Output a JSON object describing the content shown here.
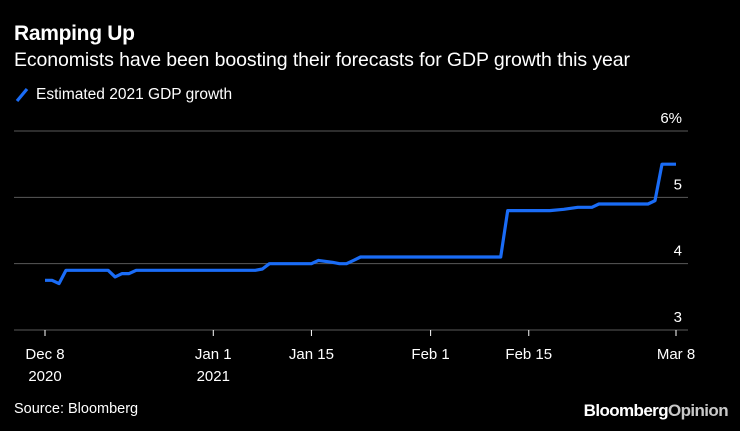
{
  "header": {
    "title": "Ramping Up",
    "subtitle": "Economists have been boosting their forecasts for GDP growth this year"
  },
  "footer": {
    "source": "Source: Bloomberg",
    "brand_part1": "Bloomberg",
    "brand_part2": "Opinion"
  },
  "colors": {
    "background": "#000000",
    "line": "#1a6cf6",
    "grid": "#5a5a5a",
    "text": "#ffffff",
    "brand_accent": "#c8c8c8"
  },
  "chart_data": {
    "type": "line",
    "title": "Ramping Up",
    "subtitle": "Economists have been boosting their forecasts for GDP growth this year",
    "xlabel": "",
    "ylabel": "",
    "ylim": [
      3,
      6
    ],
    "xlim_days": [
      -1,
      90
    ],
    "yticks": [
      {
        "value": 3,
        "label": "3"
      },
      {
        "value": 4,
        "label": "4"
      },
      {
        "value": 5,
        "label": "5"
      },
      {
        "value": 6,
        "label": "6%"
      }
    ],
    "xticks": [
      {
        "day": 0,
        "label": "Dec 8",
        "sublabel": "2020"
      },
      {
        "day": 24,
        "label": "Jan 1",
        "sublabel": "2021"
      },
      {
        "day": 38,
        "label": "Jan 15",
        "sublabel": ""
      },
      {
        "day": 55,
        "label": "Feb 1",
        "sublabel": ""
      },
      {
        "day": 69,
        "label": "Feb 15",
        "sublabel": ""
      },
      {
        "day": 90,
        "label": "Mar 8",
        "sublabel": ""
      }
    ],
    "legend": {
      "position": "top-left",
      "entries": [
        "Estimated 2021 GDP growth"
      ]
    },
    "series": [
      {
        "name": "Estimated 2021 GDP growth",
        "x": [
          0,
          1,
          2,
          3,
          4,
          8,
          9,
          10,
          11,
          12,
          13,
          14,
          18,
          22,
          25,
          30,
          31,
          32,
          33,
          35,
          37,
          38,
          39,
          41,
          42,
          43,
          44,
          45,
          46,
          50,
          55,
          60,
          64,
          65,
          66,
          67,
          68,
          69,
          70,
          72,
          74,
          76,
          77,
          78,
          79,
          80,
          82,
          84,
          86,
          87,
          88,
          89,
          90
        ],
        "values": [
          3.75,
          3.75,
          3.7,
          3.9,
          3.9,
          3.9,
          3.9,
          3.8,
          3.85,
          3.85,
          3.9,
          3.9,
          3.9,
          3.9,
          3.9,
          3.9,
          3.92,
          4.0,
          4.0,
          4.0,
          4.0,
          4.0,
          4.05,
          4.02,
          4.0,
          4.0,
          4.05,
          4.1,
          4.1,
          4.1,
          4.1,
          4.1,
          4.1,
          4.1,
          4.8,
          4.8,
          4.8,
          4.8,
          4.8,
          4.8,
          4.82,
          4.85,
          4.85,
          4.85,
          4.9,
          4.9,
          4.9,
          4.9,
          4.9,
          4.95,
          5.5,
          5.5,
          5.5
        ]
      }
    ]
  }
}
